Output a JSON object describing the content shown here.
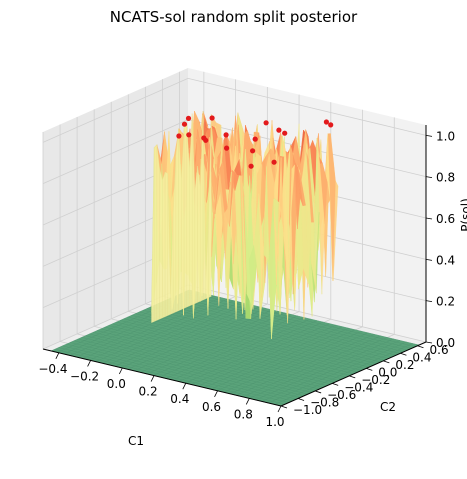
{
  "chart_data": {
    "type": "surface3d",
    "title": "NCATS-sol random split posterior",
    "xlabel": "C1",
    "ylabel": "C2",
    "zlabel": "P(sol)",
    "x_ticks": [
      "−0.4",
      "−0.2",
      "0.0",
      "0.2",
      "0.4",
      "0.6",
      "0.8",
      "1.0"
    ],
    "y_ticks": [
      "−1.0",
      "−0.8",
      "−0.6",
      "−0.4",
      "−0.2",
      "0.0",
      "0.2",
      "0.4",
      "0.6"
    ],
    "z_ticks": [
      "0.0",
      "0.2",
      "0.4",
      "0.6",
      "0.8",
      "1.0"
    ],
    "xlim": [
      -0.5,
      1.0
    ],
    "ylim": [
      -1.0,
      0.7
    ],
    "zlim": [
      0.0,
      1.05
    ],
    "colormap": [
      "#1a9850",
      "#91cf60",
      "#d9ef8b",
      "#fee08b",
      "#fc8d59",
      "#d73027"
    ],
    "floor_color": "#5aa37a",
    "region": {
      "c1_range": [
        -0.3,
        0.5
      ],
      "c2_range": [
        -0.1,
        0.6
      ],
      "z_range": [
        0.05,
        0.95
      ]
    },
    "points_color": "#e31a1c",
    "grid": true
  }
}
